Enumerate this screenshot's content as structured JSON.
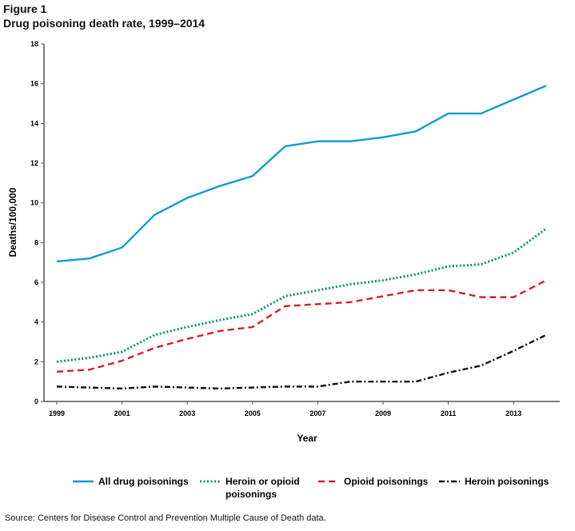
{
  "figure_label": "Figure 1",
  "source": "Source: Centers for Disease Control and Prevention Multiple Cause of Death data.",
  "chart_data": {
    "type": "line",
    "title": "Drug poisoning death rate, 1999–2014",
    "xlabel": "Year",
    "ylabel": "Deaths/100,000",
    "ylim": [
      0,
      18
    ],
    "yticks": [
      0,
      2,
      4,
      6,
      8,
      10,
      12,
      14,
      16,
      18
    ],
    "xlim": [
      1999,
      2014
    ],
    "xticks": [
      1999,
      2001,
      2003,
      2005,
      2007,
      2009,
      2011,
      2013
    ],
    "grid": false,
    "legend_position": "bottom",
    "x": [
      1999,
      2000,
      2001,
      2002,
      2003,
      2004,
      2005,
      2006,
      2007,
      2008,
      2009,
      2010,
      2011,
      2012,
      2013,
      2014
    ],
    "series": [
      {
        "name": "All drug poisonings",
        "color": "#0e9bd0",
        "style": "solid",
        "values": [
          7.05,
          7.2,
          7.75,
          9.4,
          10.25,
          10.85,
          11.35,
          12.85,
          13.1,
          13.1,
          13.3,
          13.6,
          14.5,
          14.5,
          15.2,
          15.9
        ]
      },
      {
        "name": "Heroin or opioid poisonings",
        "color": "#0a9160",
        "style": "dotted",
        "values": [
          2.0,
          2.2,
          2.5,
          3.35,
          3.75,
          4.1,
          4.4,
          5.3,
          5.6,
          5.9,
          6.1,
          6.4,
          6.8,
          6.9,
          7.5,
          8.7
        ]
      },
      {
        "name": "Opioid poisonings",
        "color": "#d42027",
        "style": "dashed",
        "values": [
          1.5,
          1.6,
          2.05,
          2.7,
          3.15,
          3.55,
          3.75,
          4.8,
          4.9,
          5.0,
          5.3,
          5.6,
          5.6,
          5.25,
          5.25,
          6.1
        ]
      },
      {
        "name": "Heroin poisonings",
        "color": "#111111",
        "style": "dashdot",
        "values": [
          0.75,
          0.7,
          0.65,
          0.75,
          0.7,
          0.65,
          0.7,
          0.75,
          0.75,
          1.0,
          1.0,
          1.0,
          1.45,
          1.8,
          2.55,
          3.35
        ]
      }
    ]
  }
}
